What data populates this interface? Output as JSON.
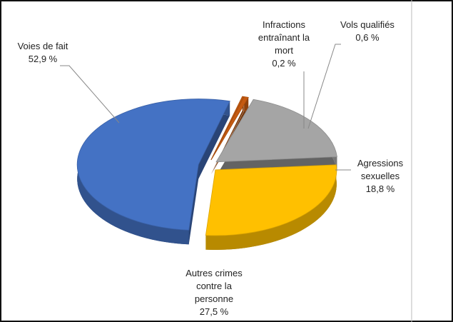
{
  "chart_data": {
    "type": "pie",
    "categories": [
      "Infractions entraînant la mort",
      "Vols qualifiés",
      "Agressions sexuelles",
      "Autres crimes contre la personne",
      "Voies de fait"
    ],
    "values": [
      0.2,
      0.6,
      18.8,
      27.5,
      52.9
    ],
    "value_labels": [
      "0,2 %",
      "0,6 %",
      "18,8 %",
      "27,5 %",
      "52,9 %"
    ],
    "colors": [
      "#c55a11",
      "#c55a11",
      "#a5a5a5",
      "#ffc000",
      "#4472c4"
    ]
  }
}
